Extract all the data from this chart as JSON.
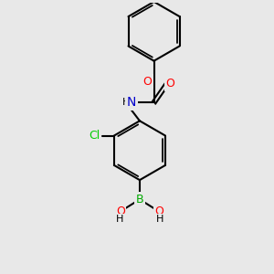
{
  "background_color": "#e8e8e8",
  "bond_color": "#000000",
  "bond_width": 1.5,
  "atom_colors": {
    "C": "#000000",
    "H": "#000000",
    "N": "#0000cc",
    "O": "#ff0000",
    "B": "#00aa00",
    "Cl": "#00cc00"
  },
  "font_size": 9,
  "fig_size": [
    3.0,
    3.0
  ],
  "dpi": 100
}
